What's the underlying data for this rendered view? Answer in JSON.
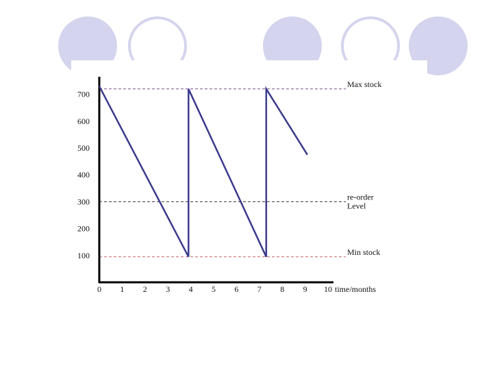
{
  "decor": {
    "circle_fill": "#d4d4ee",
    "circle_stroke": "#d4d4ee",
    "circles": [
      {
        "style": "filled"
      },
      {
        "style": "outline"
      },
      {
        "style": "filled"
      },
      {
        "style": "outline"
      },
      {
        "style": "filled"
      }
    ]
  },
  "chart_data": {
    "type": "line",
    "title": "",
    "xlabel": "time/months",
    "ylabel": "",
    "xlim": [
      0,
      10
    ],
    "ylim": [
      0,
      750
    ],
    "x_ticks": [
      "0",
      "1",
      "2",
      "3",
      "4",
      "5",
      "6",
      "7",
      "8",
      "9",
      "10"
    ],
    "y_ticks": [
      "100",
      "200",
      "300",
      "400",
      "500",
      "600",
      "700"
    ],
    "y_tick_values": [
      100,
      200,
      300,
      400,
      500,
      600,
      700
    ],
    "grid": false,
    "series_color": "#3a3a8c",
    "series": [
      {
        "points": [
          {
            "x": 0,
            "y": 730
          },
          {
            "x": 3.9,
            "y": 95
          },
          {
            "x": 3.9,
            "y": 720
          },
          {
            "x": 7.3,
            "y": 95
          },
          {
            "x": 7.3,
            "y": 720
          },
          {
            "x": 9.1,
            "y": 475
          }
        ]
      }
    ],
    "reference_lines": [
      {
        "label": "Max stock",
        "value": 720,
        "color": "#7a4a8c"
      },
      {
        "label": "re-order\nLevel",
        "value": 300,
        "color": "#333333"
      },
      {
        "label": "Min stock",
        "value": 95,
        "color": "#c06060"
      }
    ]
  }
}
